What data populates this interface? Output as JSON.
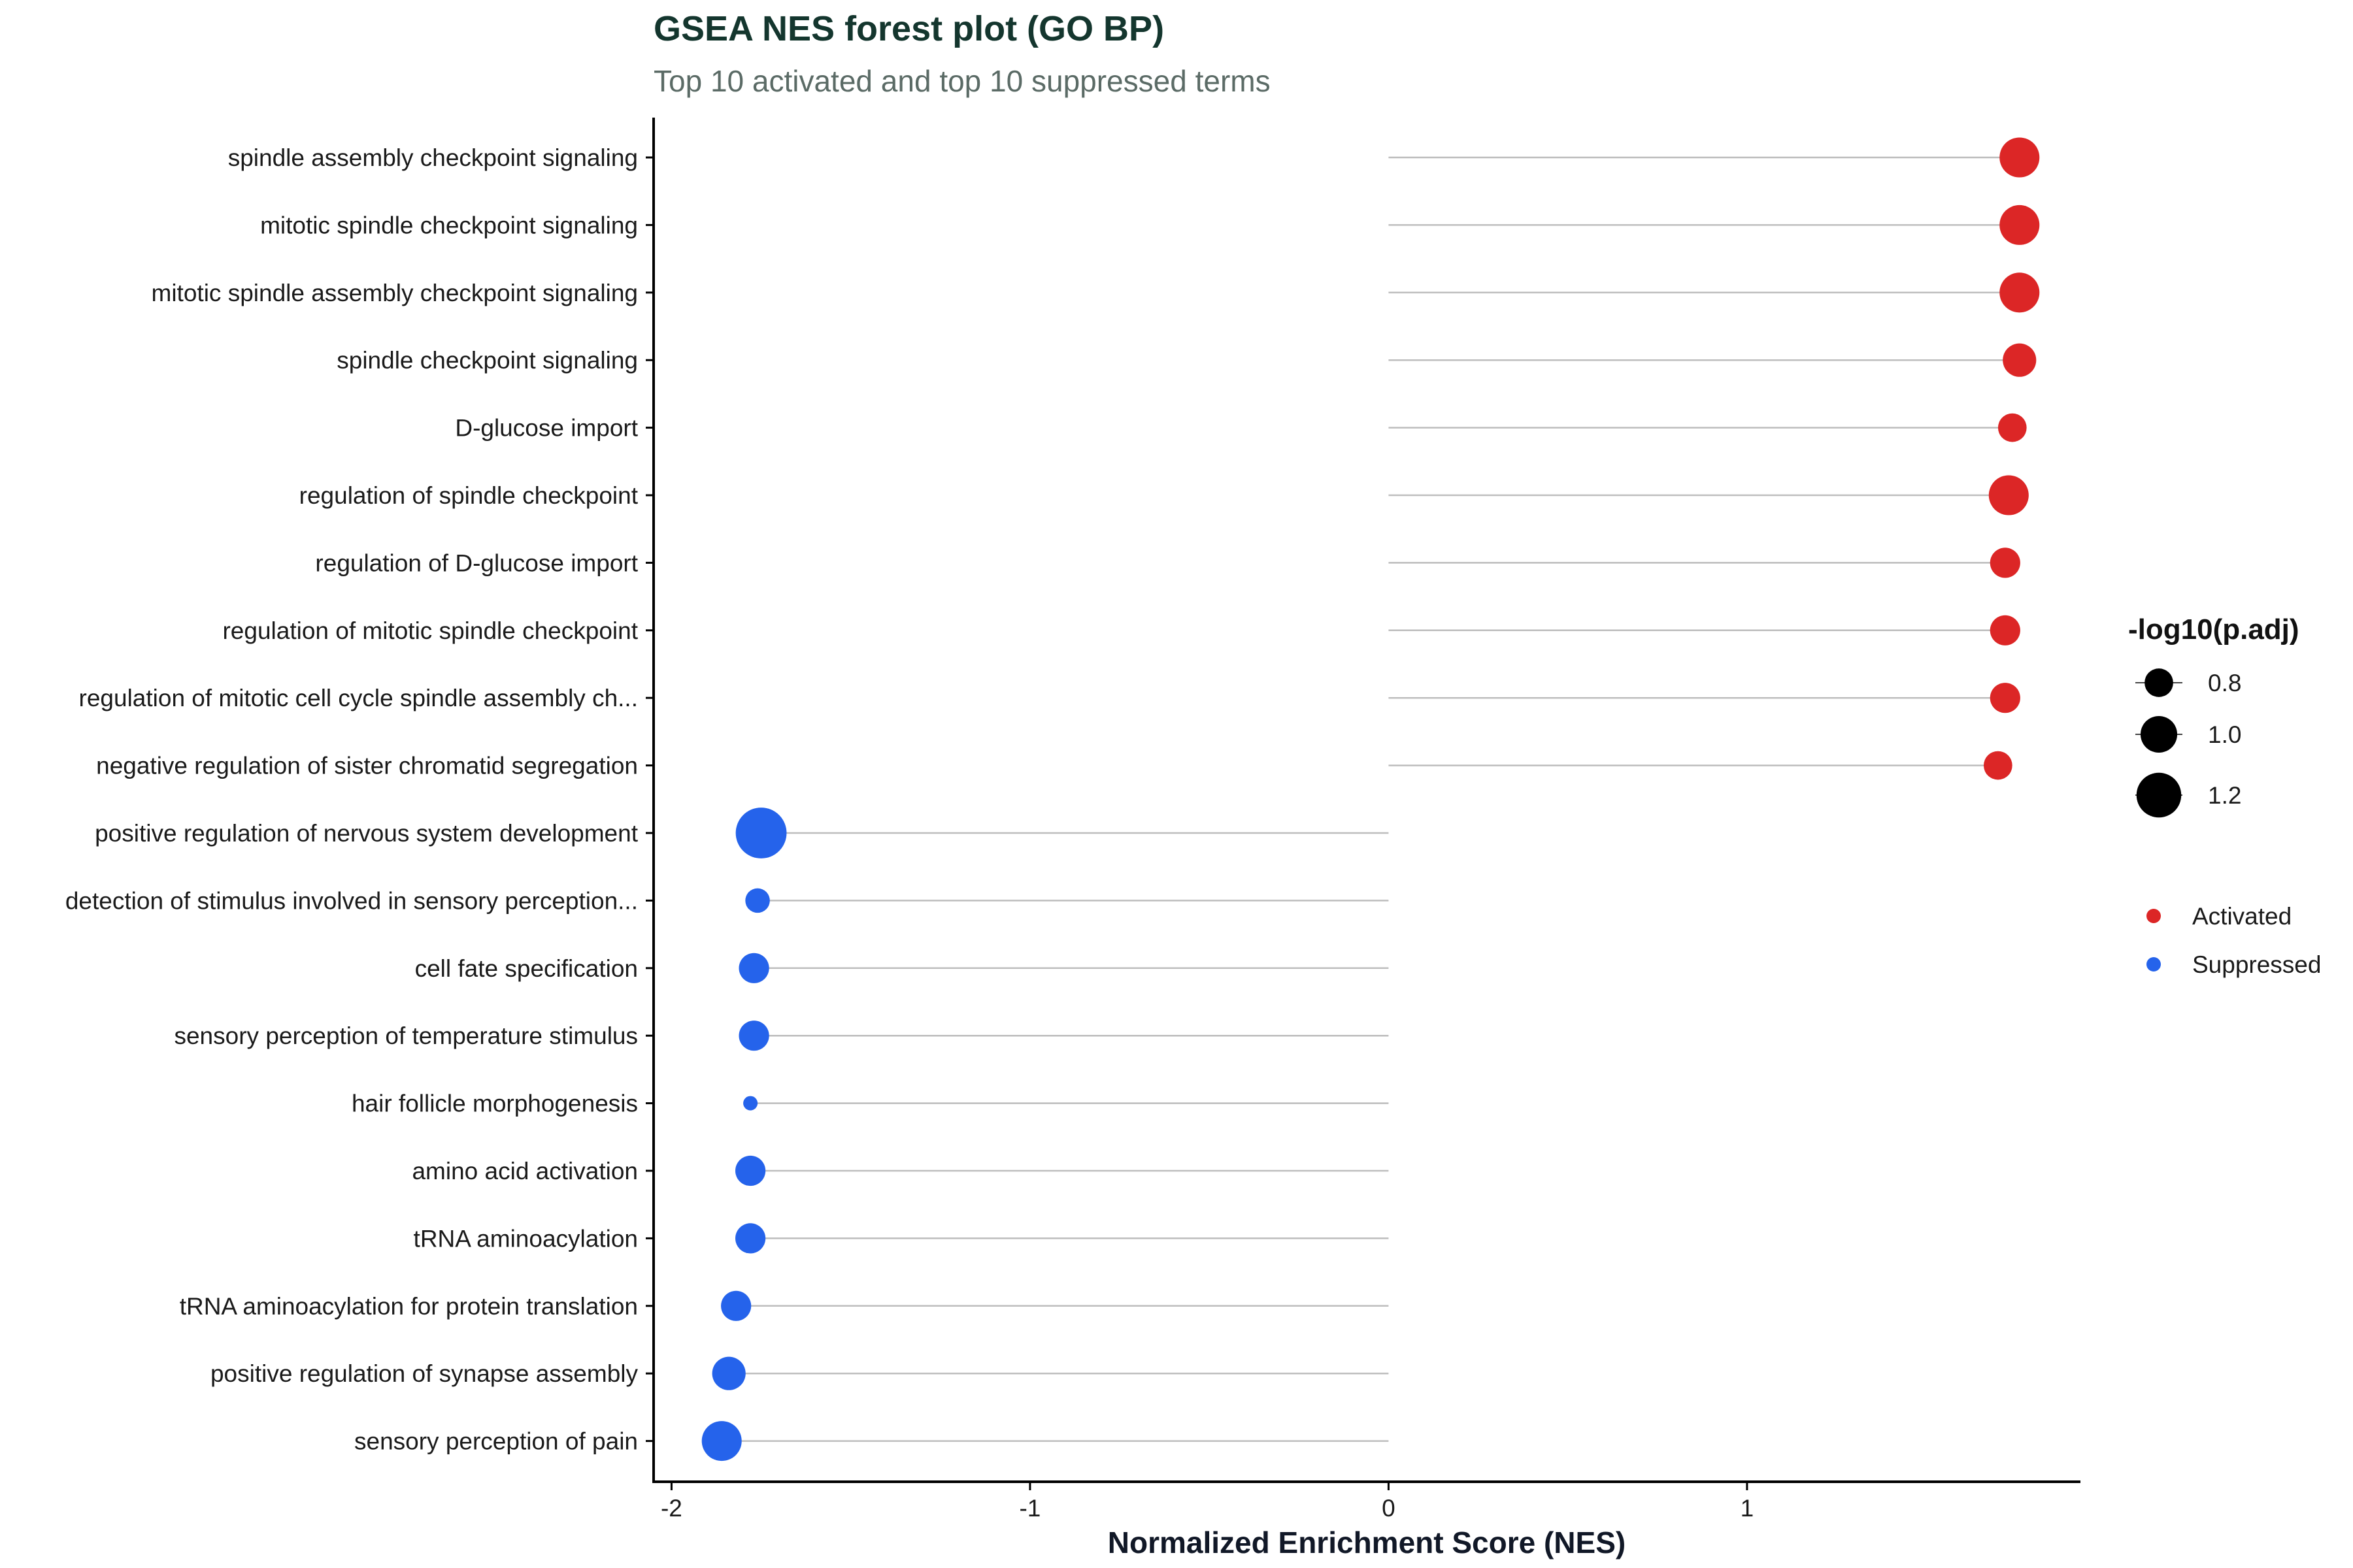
{
  "chart_data": {
    "type": "scatter",
    "title": "GSEA NES forest plot (GO BP)",
    "subtitle": "Top 10 activated and top 10 suppressed terms",
    "xlabel": "Normalized Enrichment Score (NES)",
    "xlim": [
      -2.05,
      1.93
    ],
    "xticks": [
      -2,
      -1,
      0,
      1
    ],
    "xtick_labels": [
      "-2",
      "-1",
      "0",
      "1"
    ],
    "grid": false,
    "size_legend": {
      "title": "-log10(p.adj)",
      "values": [
        0.8,
        1.0,
        1.2
      ],
      "labels": [
        "0.8",
        "1.0",
        "1.2"
      ]
    },
    "color_legend": {
      "placement": "right",
      "entries": [
        {
          "name": "Activated",
          "color": "#dc2626"
        },
        {
          "name": "Suppressed",
          "color": "#2563eb"
        }
      ]
    },
    "colors": {
      "Activated": "#dc2626",
      "Suppressed": "#2563eb",
      "stem": "#bdbdbd",
      "axis": "#000000"
    },
    "terms": [
      {
        "label": "spindle assembly checkpoint signaling",
        "nes": 1.76,
        "neglog10_padj": 1.08,
        "group": "Activated"
      },
      {
        "label": "mitotic spindle checkpoint signaling",
        "nes": 1.76,
        "neglog10_padj": 1.08,
        "group": "Activated"
      },
      {
        "label": "mitotic spindle assembly checkpoint signaling",
        "nes": 1.76,
        "neglog10_padj": 1.08,
        "group": "Activated"
      },
      {
        "label": "spindle checkpoint signaling",
        "nes": 1.76,
        "neglog10_padj": 0.92,
        "group": "Activated"
      },
      {
        "label": "D-glucose import",
        "nes": 1.74,
        "neglog10_padj": 0.8,
        "group": "Activated"
      },
      {
        "label": "regulation of spindle checkpoint",
        "nes": 1.73,
        "neglog10_padj": 1.08,
        "group": "Activated"
      },
      {
        "label": "regulation of D-glucose import",
        "nes": 1.72,
        "neglog10_padj": 0.84,
        "group": "Activated"
      },
      {
        "label": "regulation of mitotic spindle checkpoint",
        "nes": 1.72,
        "neglog10_padj": 0.84,
        "group": "Activated"
      },
      {
        "label": "regulation of mitotic cell cycle spindle assembly ch...",
        "nes": 1.72,
        "neglog10_padj": 0.84,
        "group": "Activated"
      },
      {
        "label": "negative regulation of sister chromatid segregation",
        "nes": 1.7,
        "neglog10_padj": 0.8,
        "group": "Activated"
      },
      {
        "label": "positive regulation of nervous system development",
        "nes": -1.75,
        "neglog10_padj": 1.35,
        "group": "Suppressed"
      },
      {
        "label": "detection of stimulus involved in sensory perception...",
        "nes": -1.76,
        "neglog10_padj": 0.7,
        "group": "Suppressed"
      },
      {
        "label": "cell fate specification",
        "nes": -1.77,
        "neglog10_padj": 0.84,
        "group": "Suppressed"
      },
      {
        "label": "sensory perception of temperature stimulus",
        "nes": -1.77,
        "neglog10_padj": 0.84,
        "group": "Suppressed"
      },
      {
        "label": "hair follicle morphogenesis",
        "nes": -1.78,
        "neglog10_padj": 0.45,
        "group": "Suppressed"
      },
      {
        "label": "amino acid activation",
        "nes": -1.78,
        "neglog10_padj": 0.84,
        "group": "Suppressed"
      },
      {
        "label": "tRNA aminoacylation",
        "nes": -1.78,
        "neglog10_padj": 0.84,
        "group": "Suppressed"
      },
      {
        "label": "tRNA aminoacylation for protein translation",
        "nes": -1.82,
        "neglog10_padj": 0.84,
        "group": "Suppressed"
      },
      {
        "label": "positive regulation of synapse assembly",
        "nes": -1.84,
        "neglog10_padj": 0.92,
        "group": "Suppressed"
      },
      {
        "label": "sensory perception of pain",
        "nes": -1.86,
        "neglog10_padj": 1.08,
        "group": "Suppressed"
      }
    ]
  }
}
